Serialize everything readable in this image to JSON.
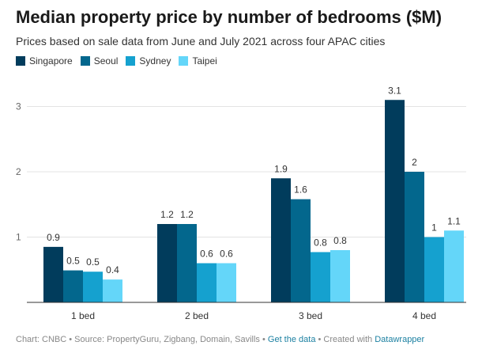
{
  "header": {
    "title": "Median property price by number of bedrooms ($M)",
    "subtitle": "Prices based on sale data from June and July 2021 across four APAC cities"
  },
  "footer": {
    "prefix": "Chart: CNBC • Source: PropertyGuru, Zigbang, Domain, Savills •",
    "data_link": "Get the data",
    "middle": "• Created with",
    "tool_link": "Datawrapper"
  },
  "colors": {
    "Singapore": "#013c5c",
    "Seoul": "#03678d",
    "Sydney": "#15a1cf",
    "Taipei": "#64d6f9"
  },
  "chart_data": {
    "type": "bar",
    "title": "Median property price by number of bedrooms ($M)",
    "subtitle": "Prices based on sale data from June and July 2021 across four APAC cities",
    "categories": [
      "1 bed",
      "2 bed",
      "3 bed",
      "4 bed"
    ],
    "series": [
      {
        "name": "Singapore",
        "values": [
          0.85,
          1.2,
          1.9,
          3.1
        ],
        "labels": [
          "0.9",
          "1.2",
          "1.9",
          "3.1"
        ]
      },
      {
        "name": "Seoul",
        "values": [
          0.49,
          1.2,
          1.58,
          2.0
        ],
        "labels": [
          "0.5",
          "1.2",
          "1.6",
          "2"
        ]
      },
      {
        "name": "Sydney",
        "values": [
          0.47,
          0.6,
          0.77,
          1.0
        ],
        "labels": [
          "0.5",
          "0.6",
          "0.8",
          "1"
        ]
      },
      {
        "name": "Taipei",
        "values": [
          0.35,
          0.6,
          0.8,
          1.1
        ],
        "labels": [
          "0.4",
          "0.6",
          "0.8",
          "1.1"
        ]
      }
    ],
    "yticks": [
      "1",
      "2",
      "3"
    ],
    "ylim": [
      0,
      3.1
    ],
    "xlabel": "",
    "ylabel": "",
    "legend": "top-left",
    "grid": true
  }
}
